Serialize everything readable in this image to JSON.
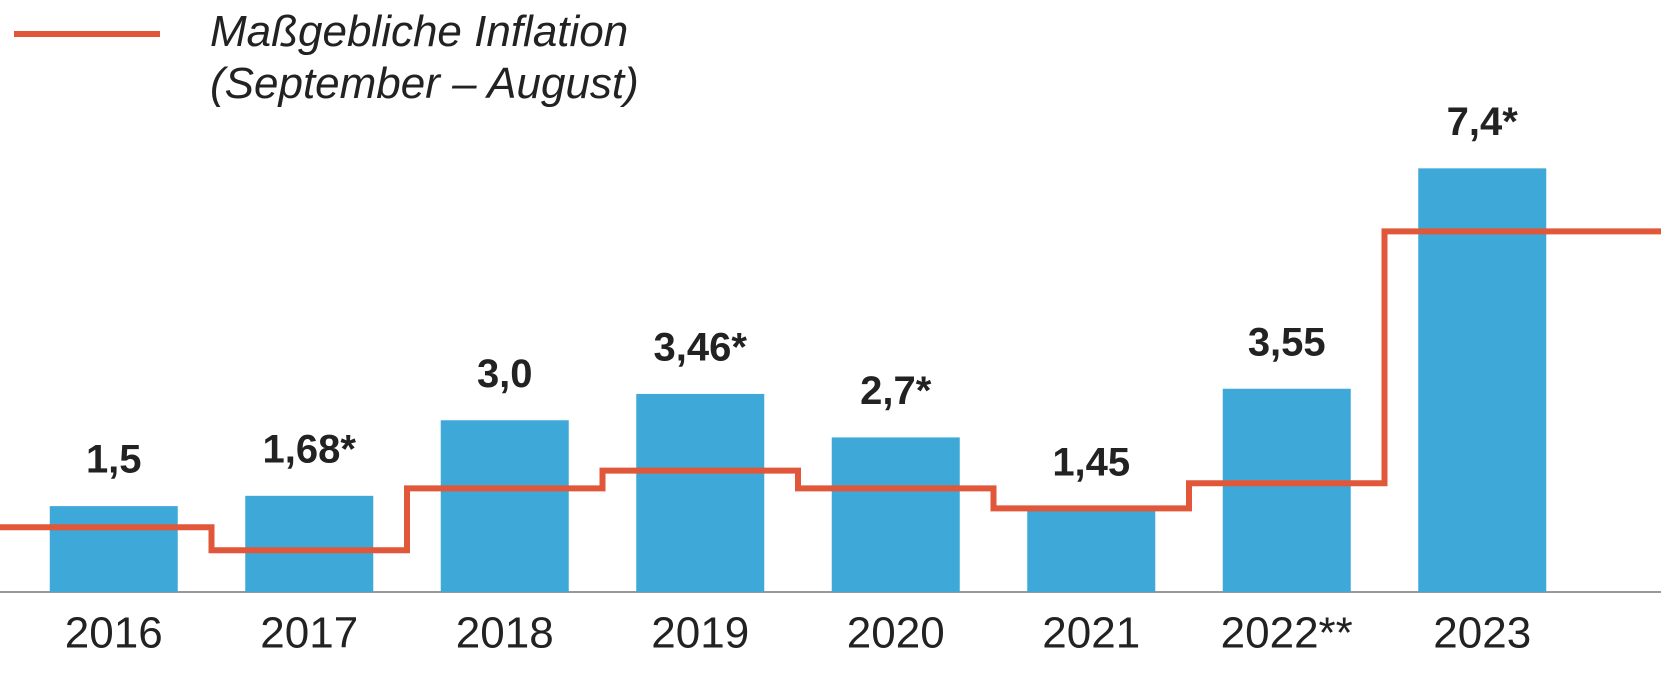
{
  "chart_data": {
    "type": "bar",
    "categories": [
      "2016",
      "2017",
      "2018",
      "2019",
      "2020",
      "2021",
      "2022**",
      "2023"
    ],
    "values": [
      1.5,
      1.68,
      3.0,
      3.46,
      2.7,
      1.45,
      3.55,
      7.4
    ],
    "value_labels": [
      "1,5",
      "1,68*",
      "3,0",
      "3,46*",
      "2,7*",
      "1,45",
      "3,55",
      "7,4*"
    ],
    "color": "#3ea8d8",
    "line": {
      "name": "Maßgebliche Inflation (September – August)",
      "color": "#e0573a",
      "values": [
        1.13,
        0.73,
        1.81,
        2.12,
        1.81,
        1.46,
        1.9,
        6.3
      ]
    },
    "ylim": [
      0,
      8
    ]
  }
}
